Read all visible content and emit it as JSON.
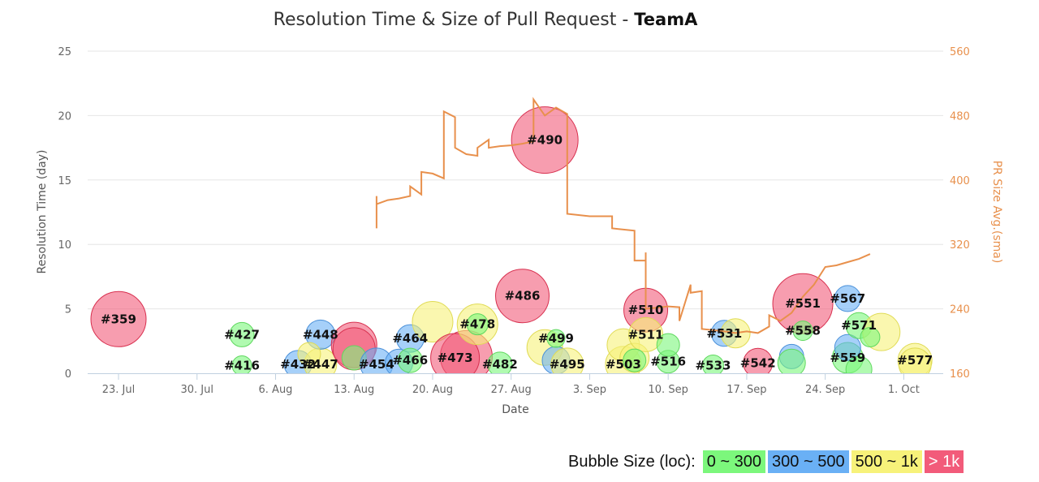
{
  "title": "Resolution Time & Size of Pull Request - ",
  "team": "TeamA",
  "chart_data": {
    "type": "scatter",
    "subtype": "bubble",
    "xlabel": "Date",
    "ylabel": "Resolution Time (day)",
    "ylabel_right": "PR Size Avg.(sma)",
    "x_ticks": [
      "23. Jul",
      "30. Jul",
      "6. Aug",
      "13. Aug",
      "20. Aug",
      "27. Aug",
      "3. Sep",
      "10. Sep",
      "17. Sep",
      "24. Sep",
      "1. Oct"
    ],
    "x_range": [
      "2018-07-20",
      "2018-10-04"
    ],
    "y_ticks": [
      0,
      5,
      10,
      15,
      20,
      25
    ],
    "ylim": [
      0,
      25
    ],
    "y2_ticks": [
      160,
      240,
      320,
      400,
      480,
      560
    ],
    "y2lim": [
      160,
      560
    ],
    "grid": true,
    "colors": {
      "green": "#7cf77c",
      "blue": "#6ab0f5",
      "yellow": "#f7f27a",
      "red": "#f25b7a",
      "sma_line": "#e8904c"
    },
    "bubbles": [
      {
        "label": "#359",
        "date": "2018-07-23",
        "y": 4.2,
        "size": "red",
        "r": 34
      },
      {
        "label": "#416",
        "date": "2018-08-03",
        "y": 0.6,
        "size": "green",
        "r": 12
      },
      {
        "label": "#427",
        "date": "2018-08-03",
        "y": 3.0,
        "size": "green",
        "r": 15
      },
      {
        "label": "#432",
        "date": "2018-08-08",
        "y": 0.7,
        "size": "blue",
        "r": 17
      },
      {
        "label": "#447",
        "date": "2018-08-10",
        "y": 0.7,
        "size": "yellow",
        "r": 20
      },
      {
        "label": "#448",
        "date": "2018-08-10",
        "y": 3.0,
        "size": "blue",
        "r": 18
      },
      {
        "label": "",
        "date": "2018-08-09",
        "y": 1.5,
        "size": "yellow",
        "r": 14
      },
      {
        "label": "",
        "date": "2018-08-13",
        "y": 2.2,
        "size": "red",
        "r": 28
      },
      {
        "label": "",
        "date": "2018-08-13",
        "y": 1.9,
        "size": "red",
        "r": 26
      },
      {
        "label": "",
        "date": "2018-08-13",
        "y": 1.2,
        "size": "green",
        "r": 15
      },
      {
        "label": "#454",
        "date": "2018-08-15",
        "y": 0.7,
        "size": "blue",
        "r": 20
      },
      {
        "label": "",
        "date": "2018-08-17",
        "y": 0.8,
        "size": "blue",
        "r": 17
      },
      {
        "label": "#464",
        "date": "2018-08-18",
        "y": 2.7,
        "size": "blue",
        "r": 17
      },
      {
        "label": "#466",
        "date": "2018-08-18",
        "y": 1.0,
        "size": "green",
        "r": 15
      },
      {
        "label": "",
        "date": "2018-08-20",
        "y": 4.0,
        "size": "yellow",
        "r": 25
      },
      {
        "label": "",
        "date": "2018-08-23",
        "y": 1.3,
        "size": "red",
        "r": 32
      },
      {
        "label": "#473",
        "date": "2018-08-22",
        "y": 1.2,
        "size": "red",
        "r": 30
      },
      {
        "label": "#478",
        "date": "2018-08-24",
        "y": 3.8,
        "size": "yellow",
        "r": 25
      },
      {
        "label": "",
        "date": "2018-08-24",
        "y": 3.8,
        "size": "green",
        "r": 13
      },
      {
        "label": "#482",
        "date": "2018-08-26",
        "y": 0.7,
        "size": "green",
        "r": 15
      },
      {
        "label": "#486",
        "date": "2018-08-28",
        "y": 6.0,
        "size": "red",
        "r": 33
      },
      {
        "label": "#490",
        "date": "2018-08-30",
        "y": 18.1,
        "size": "red",
        "r": 41
      },
      {
        "label": "",
        "date": "2018-08-30",
        "y": 2.0,
        "size": "yellow",
        "r": 22
      },
      {
        "label": "",
        "date": "2018-08-31",
        "y": 1.0,
        "size": "blue",
        "r": 17
      },
      {
        "label": "#495",
        "date": "2018-09-01",
        "y": 0.7,
        "size": "yellow",
        "r": 20
      },
      {
        "label": "#499",
        "date": "2018-08-31",
        "y": 2.7,
        "size": "green",
        "r": 11
      },
      {
        "label": "#503",
        "date": "2018-09-06",
        "y": 0.7,
        "size": "yellow",
        "r": 22
      },
      {
        "label": "",
        "date": "2018-09-06",
        "y": 2.2,
        "size": "yellow",
        "r": 20
      },
      {
        "label": "",
        "date": "2018-09-07",
        "y": 1.2,
        "size": "yellow",
        "r": 18
      },
      {
        "label": "#510",
        "date": "2018-09-08",
        "y": 4.9,
        "size": "red",
        "r": 27
      },
      {
        "label": "#511",
        "date": "2018-09-08",
        "y": 3.0,
        "size": "yellow",
        "r": 21
      },
      {
        "label": "",
        "date": "2018-09-07",
        "y": 1.0,
        "size": "green",
        "r": 14
      },
      {
        "label": "#516",
        "date": "2018-09-10",
        "y": 0.9,
        "size": "green",
        "r": 14
      },
      {
        "label": "",
        "date": "2018-09-10",
        "y": 2.2,
        "size": "green",
        "r": 14
      },
      {
        "label": "#531",
        "date": "2018-09-15",
        "y": 3.1,
        "size": "blue",
        "r": 16
      },
      {
        "label": "",
        "date": "2018-09-16",
        "y": 3.1,
        "size": "yellow",
        "r": 18
      },
      {
        "label": "#533",
        "date": "2018-09-14",
        "y": 0.6,
        "size": "green",
        "r": 13
      },
      {
        "label": "#542",
        "date": "2018-09-18",
        "y": 0.8,
        "size": "red",
        "r": 18
      },
      {
        "label": "#551",
        "date": "2018-09-22",
        "y": 5.4,
        "size": "red",
        "r": 37
      },
      {
        "label": "",
        "date": "2018-09-21",
        "y": 1.3,
        "size": "blue",
        "r": 15
      },
      {
        "label": "",
        "date": "2018-09-21",
        "y": 0.8,
        "size": "green",
        "r": 17
      },
      {
        "label": "#558",
        "date": "2018-09-22",
        "y": 3.3,
        "size": "green",
        "r": 12
      },
      {
        "label": "#559",
        "date": "2018-09-26",
        "y": 1.2,
        "size": "green",
        "r": 19
      },
      {
        "label": "",
        "date": "2018-09-26",
        "y": 2.0,
        "size": "blue",
        "r": 16
      },
      {
        "label": "",
        "date": "2018-09-27",
        "y": 0.3,
        "size": "green",
        "r": 16
      },
      {
        "label": "#567",
        "date": "2018-09-26",
        "y": 5.8,
        "size": "blue",
        "r": 16
      },
      {
        "label": "#571",
        "date": "2018-09-27",
        "y": 3.7,
        "size": "green",
        "r": 16
      },
      {
        "label": "",
        "date": "2018-09-29",
        "y": 3.2,
        "size": "yellow",
        "r": 23
      },
      {
        "label": "",
        "date": "2018-09-28",
        "y": 2.8,
        "size": "green",
        "r": 12
      },
      {
        "label": "#577",
        "date": "2018-10-02",
        "y": 1.0,
        "size": "yellow",
        "r": 21
      },
      {
        "label": "",
        "date": "2018-10-02",
        "y": 0.7,
        "size": "yellow",
        "r": 20
      }
    ],
    "sma_line": [
      [
        "2018-08-15",
        380
      ],
      [
        "2018-08-15",
        340
      ],
      [
        "2018-08-15",
        370
      ],
      [
        "2018-08-16",
        375
      ],
      [
        "2018-08-17",
        377
      ],
      [
        "2018-08-18",
        380
      ],
      [
        "2018-08-18",
        392
      ],
      [
        "2018-08-19",
        382
      ],
      [
        "2018-08-19",
        410
      ],
      [
        "2018-08-20",
        408
      ],
      [
        "2018-08-21",
        402
      ],
      [
        "2018-08-21",
        485
      ],
      [
        "2018-08-22",
        478
      ],
      [
        "2018-08-22",
        440
      ],
      [
        "2018-08-23",
        432
      ],
      [
        "2018-08-24",
        430
      ],
      [
        "2018-08-24",
        440
      ],
      [
        "2018-08-25",
        450
      ],
      [
        "2018-08-25",
        440
      ],
      [
        "2018-08-26",
        442
      ],
      [
        "2018-08-27",
        443
      ],
      [
        "2018-08-28",
        445
      ],
      [
        "2018-08-29",
        448
      ],
      [
        "2018-08-29",
        500
      ],
      [
        "2018-08-30",
        480
      ],
      [
        "2018-08-31",
        490
      ],
      [
        "2018-09-01",
        482
      ],
      [
        "2018-09-01",
        358
      ],
      [
        "2018-09-03",
        355
      ],
      [
        "2018-09-05",
        355
      ],
      [
        "2018-09-05",
        340
      ],
      [
        "2018-09-07",
        337
      ],
      [
        "2018-09-07",
        300
      ],
      [
        "2018-09-08",
        300
      ],
      [
        "2018-09-08",
        310
      ],
      [
        "2018-09-08",
        240
      ],
      [
        "2018-09-10",
        243
      ],
      [
        "2018-09-11",
        242
      ],
      [
        "2018-09-11",
        225
      ],
      [
        "2018-09-12",
        270
      ],
      [
        "2018-09-12",
        260
      ],
      [
        "2018-09-13",
        262
      ],
      [
        "2018-09-13",
        215
      ],
      [
        "2018-09-15",
        212
      ],
      [
        "2018-09-16",
        210
      ],
      [
        "2018-09-17",
        212
      ],
      [
        "2018-09-18",
        210
      ],
      [
        "2018-09-19",
        218
      ],
      [
        "2018-09-19",
        232
      ],
      [
        "2018-09-20",
        225
      ],
      [
        "2018-09-21",
        235
      ],
      [
        "2018-09-22",
        255
      ],
      [
        "2018-09-23",
        270
      ],
      [
        "2018-09-24",
        292
      ],
      [
        "2018-09-25",
        294
      ],
      [
        "2018-09-26",
        298
      ],
      [
        "2018-09-27",
        302
      ],
      [
        "2018-09-28",
        308
      ]
    ]
  },
  "legend": {
    "title": "Bubble Size (loc):",
    "items": [
      {
        "label": "0 ~ 300",
        "color": "#7cf77c"
      },
      {
        "label": "300 ~ 500",
        "color": "#6ab0f5"
      },
      {
        "label": "500 ~ 1k",
        "color": "#f7f27a"
      },
      {
        "label": "> 1k",
        "color": "#f25b7a"
      }
    ]
  }
}
